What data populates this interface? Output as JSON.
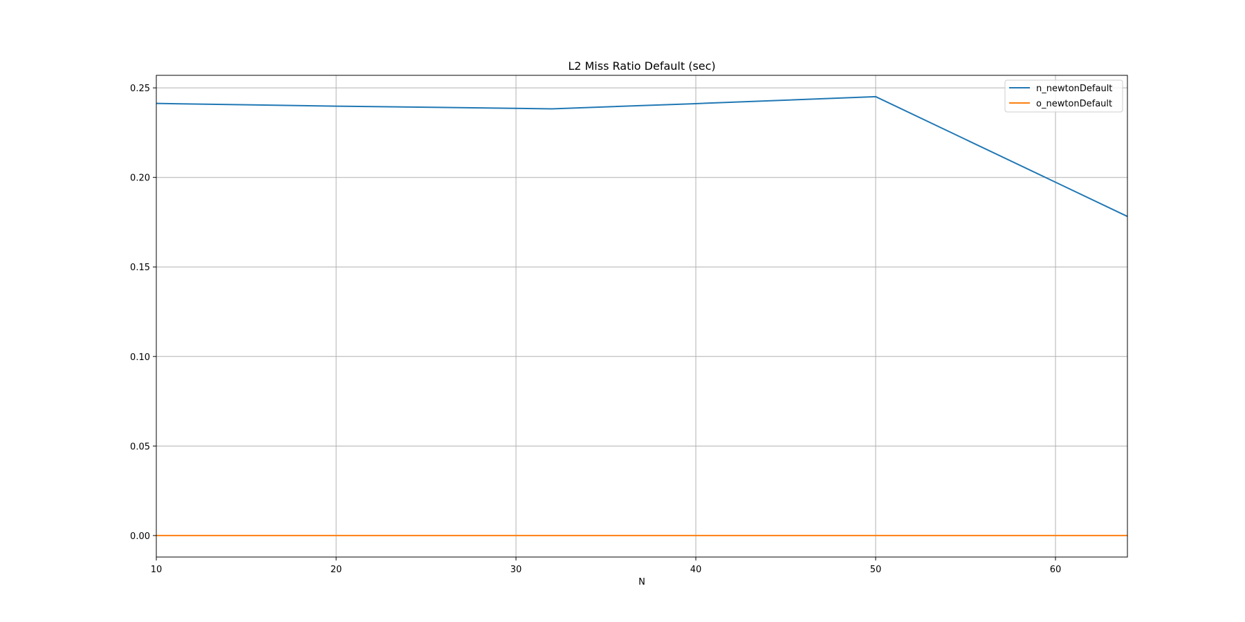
{
  "chart_data": {
    "type": "line",
    "title": "L2 Miss Ratio Default (sec)",
    "xlabel": "N",
    "ylabel": "",
    "xlim": [
      10,
      64
    ],
    "ylim": [
      -0.012,
      0.257
    ],
    "xticks": [
      10,
      20,
      30,
      40,
      50,
      60
    ],
    "xtick_labels": [
      "10",
      "20",
      "30",
      "40",
      "50",
      "60"
    ],
    "yticks": [
      0.0,
      0.05,
      0.1,
      0.15,
      0.2,
      0.25
    ],
    "ytick_labels": [
      "0.00",
      "0.05",
      "0.10",
      "0.15",
      "0.20",
      "0.25"
    ],
    "grid": true,
    "legend_position": "top-right",
    "series": [
      {
        "name": "n_newtonDefault",
        "color": "#1f77b4",
        "x": [
          10,
          20,
          32,
          40,
          50,
          64
        ],
        "y": [
          0.2413,
          0.2398,
          0.2383,
          0.2412,
          0.2451,
          0.1782
        ]
      },
      {
        "name": "o_newtonDefault",
        "color": "#ff7f0e",
        "x": [
          10,
          20,
          32,
          40,
          50,
          64
        ],
        "y": [
          0.0,
          0.0,
          0.0,
          0.0,
          0.0,
          0.0
        ]
      }
    ]
  }
}
